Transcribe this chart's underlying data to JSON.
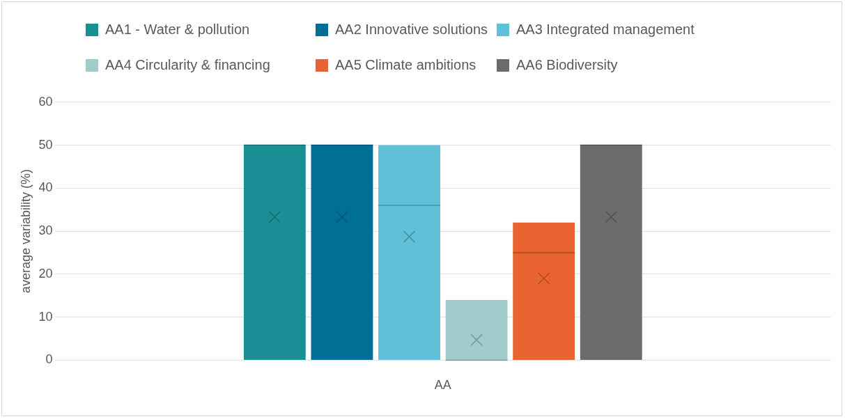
{
  "chart_data": {
    "type": "box",
    "ylabel": "average variability (%)",
    "categories": [
      "AA"
    ],
    "ylim": [
      0,
      60
    ],
    "yticks": [
      0,
      10,
      20,
      30,
      40,
      50,
      60
    ],
    "grid": "y",
    "legend": "top",
    "series": [
      {
        "name": "AA1 - Water & pollution",
        "color": "#1a9096",
        "boxes": [
          {
            "low": 0,
            "q1": 0,
            "median": 50,
            "q3": 50,
            "high": 50,
            "mean": 33.3
          }
        ]
      },
      {
        "name": "AA2 Innovative solutions",
        "color": "#006f96",
        "boxes": [
          {
            "low": 0,
            "q1": 0,
            "median": 50,
            "q3": 50,
            "high": 50,
            "mean": 33.3
          }
        ]
      },
      {
        "name": "AA3 Integrated management",
        "color": "#5fc0d8",
        "boxes": [
          {
            "low": 0,
            "q1": 0,
            "median": 36,
            "q3": 50,
            "high": 50,
            "mean": 28.7
          }
        ]
      },
      {
        "name": "AA4 Circularity & financing",
        "color": "#a2cbcc",
        "boxes": [
          {
            "low": 0,
            "q1": 0,
            "median": 0,
            "q3": 14,
            "high": 14,
            "mean": 4.7
          }
        ]
      },
      {
        "name": "AA5 Climate ambitions",
        "color": "#e8632f",
        "boxes": [
          {
            "low": 0,
            "q1": 0,
            "median": 25,
            "q3": 32,
            "high": 32,
            "mean": 19
          }
        ]
      },
      {
        "name": "AA6 Biodiversity",
        "color": "#6b6b6b",
        "boxes": [
          {
            "low": 0,
            "q1": 0,
            "median": 50,
            "q3": 50,
            "high": 50,
            "mean": 33.3
          }
        ]
      }
    ]
  }
}
